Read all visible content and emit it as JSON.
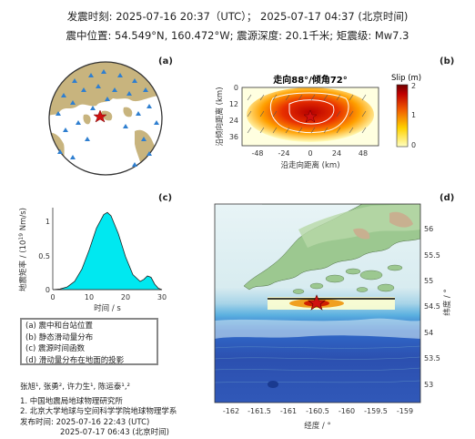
{
  "header": {
    "line1": "发震时刻: 2025-07-16 20:37（UTC）；  2025-07-17  04:37 (北京时间)",
    "line2": "震中位置: 54.549°N,  160.472°W;   震源深度: 20.1千米; 矩震级: Mw7.3"
  },
  "panels": {
    "a": {
      "label": "(a)"
    },
    "b": {
      "label": "(b)",
      "title": "走向88°/倾角72°",
      "colorbar_title": "Slip (m)",
      "colorbar_ticks": [
        "2",
        "1",
        "0"
      ],
      "ylabel": "沿倾向距离 (km)",
      "xlabel": "沿走向距离 (km)",
      "xticks": [
        "-48",
        "-24",
        "0",
        "24",
        "48"
      ],
      "yticks": [
        "0",
        "12",
        "24",
        "36"
      ]
    },
    "c": {
      "label": "(c)",
      "ylabel_top": "地震矩率 / (10",
      "ylabel_exp": "19",
      "ylabel_end": " Nm/s)",
      "xlabel": "时间 / s",
      "xticks": [
        "0",
        "10",
        "20",
        "30"
      ],
      "yticks": [
        "0",
        "0.5",
        "1"
      ]
    },
    "d": {
      "label": "(d)",
      "xlabel": "经度 / °",
      "ylabel": "纬度 / °",
      "xticks": [
        "-162",
        "-161.5",
        "-161",
        "-160.5",
        "-160",
        "-159.5",
        "-159"
      ],
      "yticks": [
        "56",
        "55.5",
        "55",
        "54.5",
        "54",
        "53.5",
        "53"
      ]
    }
  },
  "chart_data": {
    "type": "area",
    "x": [
      0,
      2,
      4,
      6,
      8,
      10,
      12,
      14,
      15,
      16,
      18,
      20,
      22,
      24,
      25,
      26,
      27,
      28,
      29,
      30
    ],
    "values": [
      0,
      0.01,
      0.04,
      0.12,
      0.3,
      0.58,
      0.9,
      1.1,
      1.13,
      1.08,
      0.82,
      0.48,
      0.22,
      0.12,
      0.15,
      0.2,
      0.18,
      0.08,
      0.02,
      0
    ],
    "xlim": [
      0,
      30
    ],
    "ylim": [
      0,
      1.2
    ],
    "color": "#00e8f0"
  },
  "legend": {
    "items": [
      "(a) 震中和台站位置",
      "(b) 静态滑动量分布",
      "(c) 震源时间函数",
      "(d) 滑动量分布在地面的投影"
    ]
  },
  "credits": {
    "authors": "张旭¹, 张勇², 许力生¹, 陈运泰¹,²",
    "aff1": "1. 中国地震局地球物理研究所",
    "aff2": "2. 北京大学地球与空间科学学院地球物理学系",
    "release1": "发布时间:   2025-07-16  22:43 (UTC)",
    "release2": "2025-07-17  06:43 (北京时间)"
  }
}
